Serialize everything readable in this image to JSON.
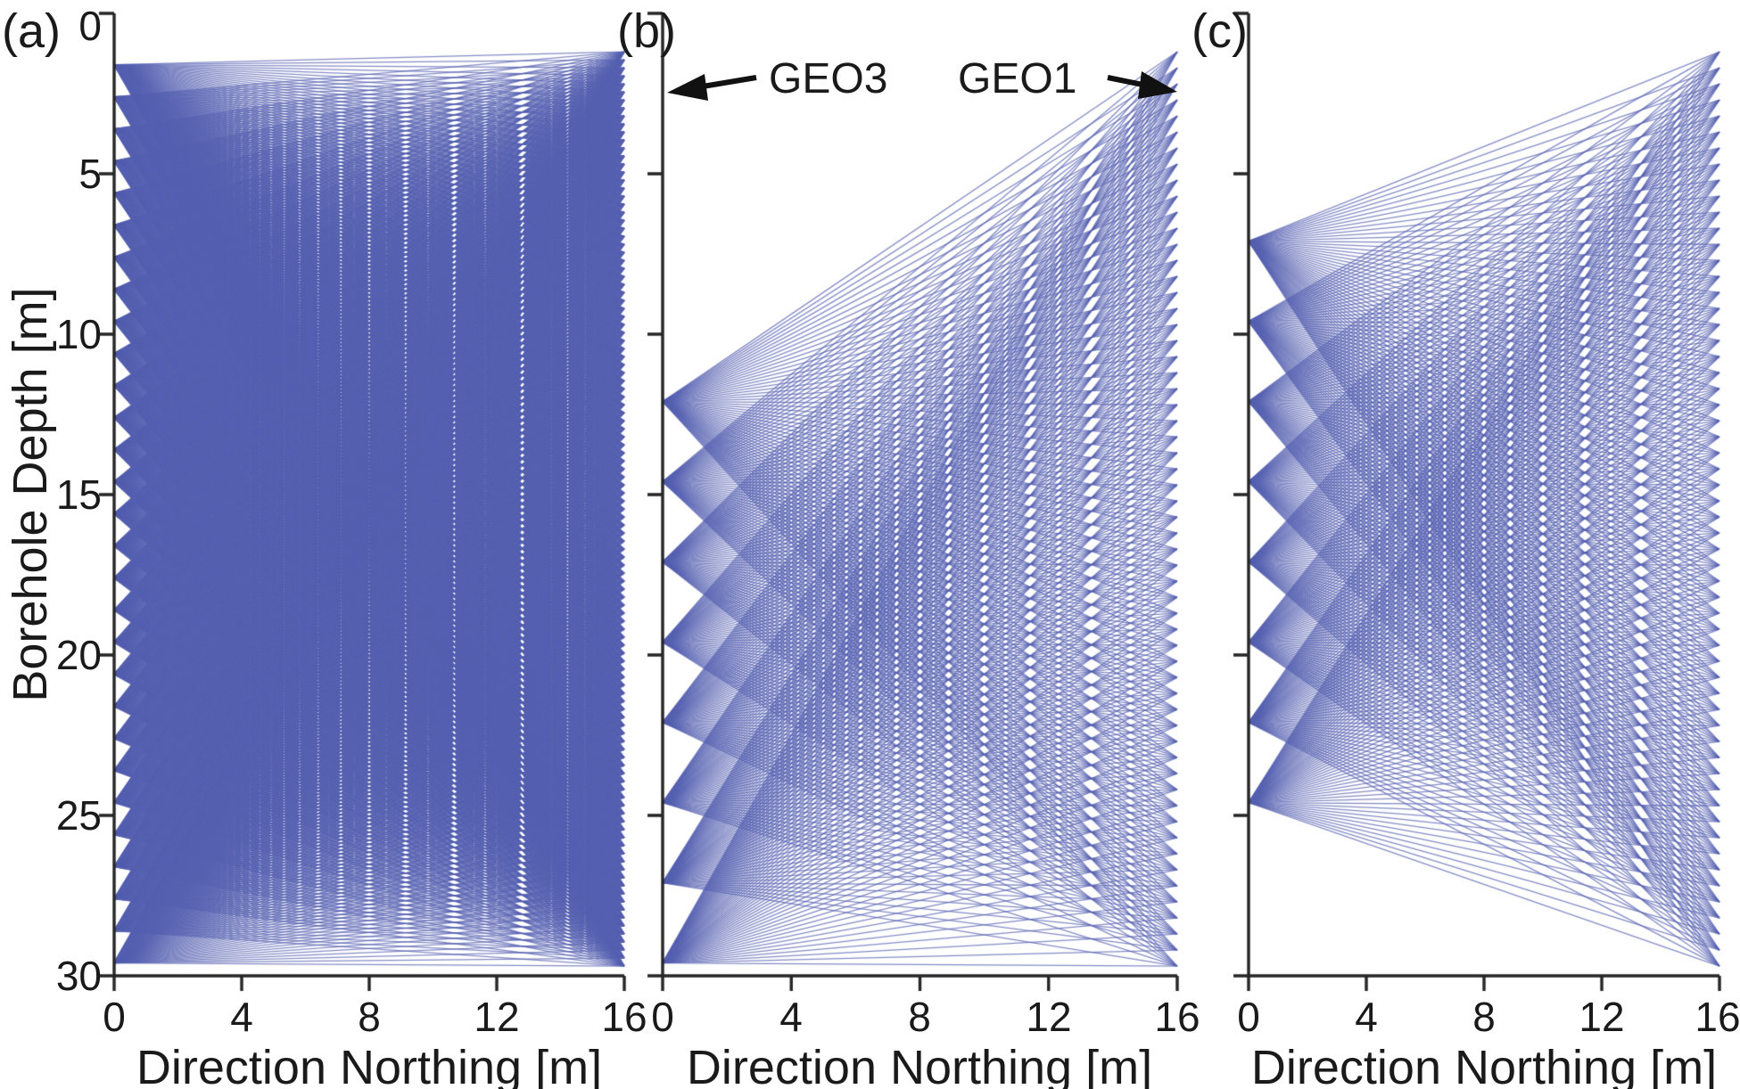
{
  "figure": {
    "ylabel": "Borehole Depth [m]",
    "background": "#ffffff",
    "text_color": "#1a1a1a",
    "axis_color": "#262626",
    "ray_color": "#5560b0",
    "annotation_arrow_color": "#111111"
  },
  "chart_data": [
    {
      "type": "line",
      "panel_label": "(a)",
      "xlabel": "Direction Northing [m]",
      "ylabel": "Borehole Depth [m]",
      "xlim": [
        0,
        16
      ],
      "ylim": [
        0,
        30
      ],
      "y_axis_direction": "reversed (depth increases downward)",
      "x_ticks": [
        "0",
        "4",
        "8",
        "12",
        "16"
      ],
      "y_ticks": [
        "0",
        "5",
        "10",
        "15",
        "20",
        "25",
        "30"
      ],
      "grid": "off",
      "description": "Crosshole ray coverage: straight rays connect every source in the left borehole (x=0) to every receiver in the right borehole (x=16).",
      "sources": {
        "x_m": 0,
        "first_depth_m": 1.6,
        "spacing_m": 1.0,
        "count": 29
      },
      "receivers": {
        "x_m": 16,
        "first_depth_m": 1.2,
        "spacing_m": 0.25,
        "count": 115
      }
    },
    {
      "type": "line",
      "panel_label": "(b)",
      "xlabel": "Direction Northing [m]",
      "ylabel": "",
      "xlim": [
        0,
        16
      ],
      "ylim": [
        0,
        30
      ],
      "y_axis_direction": "reversed (depth increases downward)",
      "x_ticks": [
        "0",
        "4",
        "8",
        "12",
        "16"
      ],
      "y_ticks": [
        "0",
        "5",
        "10",
        "15",
        "20",
        "25",
        "30"
      ],
      "grid": "off",
      "description": "Ray coverage between borehole GEO3 (left, x=0) and borehole GEO1 (right, x=16): 8 deep sources fanning to a dense receiver string.",
      "sources": {
        "x_m": 0,
        "first_depth_m": 12.1,
        "spacing_m": 2.5,
        "count": 8
      },
      "receivers": {
        "x_m": 16,
        "first_depth_m": 1.2,
        "spacing_m": 0.5,
        "count": 58
      },
      "annotations": [
        {
          "text": "GEO3",
          "points_to": "left borehole (x=0)",
          "arrow_direction": "left"
        },
        {
          "text": "GEO1",
          "points_to": "right borehole top (x=16)",
          "arrow_direction": "right"
        }
      ]
    },
    {
      "type": "line",
      "panel_label": "(c)",
      "xlabel": "Direction Northing [m]",
      "ylabel": "",
      "xlim": [
        0,
        16
      ],
      "ylim": [
        0,
        30
      ],
      "y_axis_direction": "reversed (depth increases downward)",
      "x_ticks": [
        "0",
        "4",
        "8",
        "12",
        "16"
      ],
      "y_ticks": [
        "0",
        "5",
        "10",
        "15",
        "20",
        "25",
        "30"
      ],
      "grid": "off",
      "description": "Ray coverage: 8 mid-depth sources in the left borehole fanning to a dense receiver string in the right borehole.",
      "sources": {
        "x_m": 0,
        "first_depth_m": 7.1,
        "spacing_m": 2.5,
        "count": 8
      },
      "receivers": {
        "x_m": 16,
        "first_depth_m": 1.2,
        "spacing_m": 0.5,
        "count": 58
      }
    }
  ]
}
